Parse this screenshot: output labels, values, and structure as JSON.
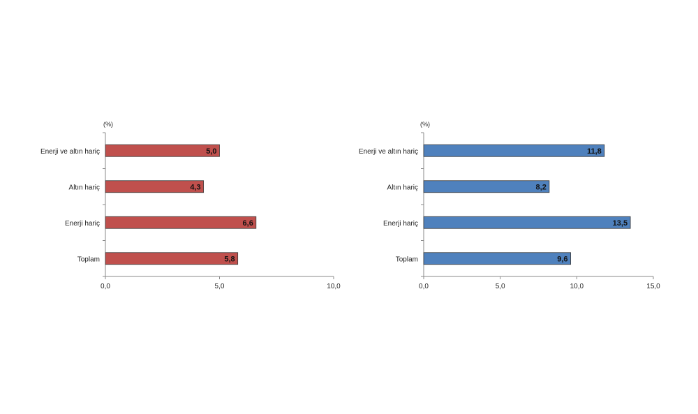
{
  "chart_data": [
    {
      "type": "bar",
      "orientation": "horizontal",
      "unit_label": "(%)",
      "categories": [
        "Enerji ve altın hariç",
        "Altın hariç",
        "Enerji hariç",
        "Toplam"
      ],
      "values": [
        5.0,
        4.3,
        6.6,
        5.8
      ],
      "value_labels": [
        "5,0",
        "4,3",
        "6,6",
        "5,8"
      ],
      "xlim": [
        0,
        10
      ],
      "x_ticks": [
        "0,0",
        "5,0",
        "10,0"
      ],
      "color": "#c0504d",
      "grid": false
    },
    {
      "type": "bar",
      "orientation": "horizontal",
      "unit_label": "(%)",
      "categories": [
        "Enerji ve altın hariç",
        "Altın hariç",
        "Enerji hariç",
        "Toplam"
      ],
      "values": [
        11.8,
        8.2,
        13.5,
        9.6
      ],
      "value_labels": [
        "11,8",
        "8,2",
        "13,5",
        "9,6"
      ],
      "xlim": [
        0,
        15
      ],
      "x_ticks": [
        "0,0",
        "5,0",
        "10,0",
        "15,0"
      ],
      "color": "#4f81bd",
      "grid": false
    }
  ]
}
